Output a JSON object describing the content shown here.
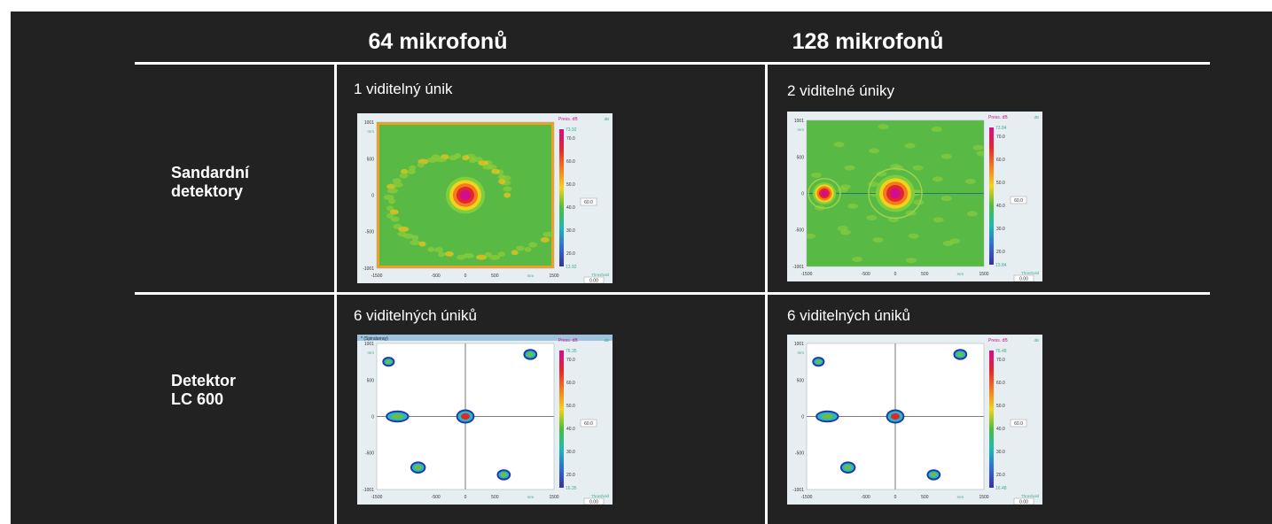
{
  "columns": [
    "64 mikrofonů",
    "128 mikrofonů"
  ],
  "rows": [
    {
      "label_lines": [
        "Sandardní",
        "detektory"
      ]
    },
    {
      "label_lines": [
        "Detektor",
        "LC 600"
      ]
    }
  ],
  "cells": [
    {
      "caption": "1 viditelný únik"
    },
    {
      "caption": "2 viditelné úniky"
    },
    {
      "caption": "6 viditelných úniků"
    },
    {
      "caption": "6 viditelných úniků"
    }
  ],
  "maps": [
    {
      "kind": "standard",
      "title": "",
      "max_label": "73.92",
      "min_label": "13.92",
      "threshold": "0.00",
      "marker": "60.0",
      "background": "noisy",
      "sources": [
        {
          "x": 0,
          "y": 0,
          "strength": 1.0
        }
      ]
    },
    {
      "kind": "standard",
      "title": "",
      "max_label": "73.84",
      "min_label": "13.84",
      "threshold": "0.00",
      "marker": "60.0",
      "background": "calm",
      "sources": [
        {
          "x": 0,
          "y": 0,
          "strength": 1.0
        },
        {
          "x": -1200,
          "y": 0,
          "strength": 0.6
        }
      ]
    },
    {
      "kind": "lc600",
      "title": "* (Spiralarray)",
      "max_label": "76.35",
      "min_label": "16.35",
      "threshold": "0.00",
      "marker": "60.0",
      "background": "white",
      "sources": [
        {
          "x": -1300,
          "y": 750,
          "strength": 0.6
        },
        {
          "x": 1100,
          "y": 850,
          "strength": 0.7
        },
        {
          "x": 0,
          "y": 0,
          "strength": 1.0
        },
        {
          "x": -1150,
          "y": 0,
          "strength": 0.8
        },
        {
          "x": -800,
          "y": -700,
          "strength": 0.8
        },
        {
          "x": 650,
          "y": -800,
          "strength": 0.7
        }
      ]
    },
    {
      "kind": "lc600",
      "title": "",
      "max_label": "76.48",
      "min_label": "16.48",
      "threshold": "0.00",
      "marker": "60.0",
      "background": "white",
      "sources": [
        {
          "x": -1300,
          "y": 750,
          "strength": 0.6
        },
        {
          "x": 1100,
          "y": 850,
          "strength": 0.7
        },
        {
          "x": 0,
          "y": 0,
          "strength": 1.0
        },
        {
          "x": -1150,
          "y": 0,
          "strength": 0.8
        },
        {
          "x": -800,
          "y": -700,
          "strength": 0.8
        },
        {
          "x": 650,
          "y": -800,
          "strength": 0.7
        }
      ]
    }
  ],
  "axes": {
    "x_ticks": [
      "-1500",
      "-500",
      "0",
      "500",
      "1500"
    ],
    "x_unit": "mm",
    "y_ticks": [
      "1001",
      "500",
      "0",
      "-500",
      "-1001"
    ],
    "y_unit": "mm",
    "colorbar_title": "Press. dB",
    "colorbar_ticks": [
      "70.0",
      "60.0",
      "50.0",
      "40.0",
      "30.0",
      "20.0"
    ],
    "threshold_label": "Threshold",
    "right_unit": "dB"
  },
  "colors": {
    "background": "#222222",
    "divider": "#ffffff"
  }
}
